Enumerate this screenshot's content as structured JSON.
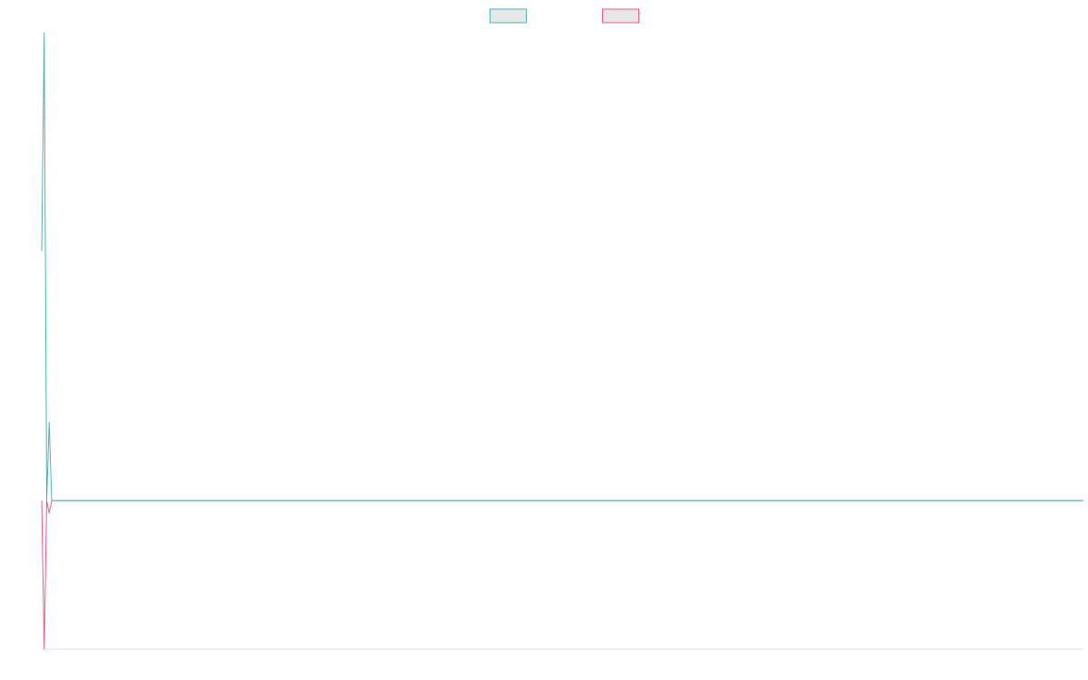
{
  "chart_data": {
    "type": "line",
    "x": [
      0,
      1,
      2,
      3,
      4,
      418
    ],
    "series": [
      {
        "color": "#4bb3b8",
        "values": [
          1.68,
          3.15,
          0,
          0.53,
          0,
          0
        ]
      },
      {
        "color": "#ee5b84",
        "values": [
          0,
          -1,
          0,
          -0.085,
          0,
          0
        ]
      }
    ],
    "xlim": [
      0,
      418
    ],
    "ylim": [
      -1,
      3.15
    ],
    "grid": false,
    "legend": "top"
  }
}
